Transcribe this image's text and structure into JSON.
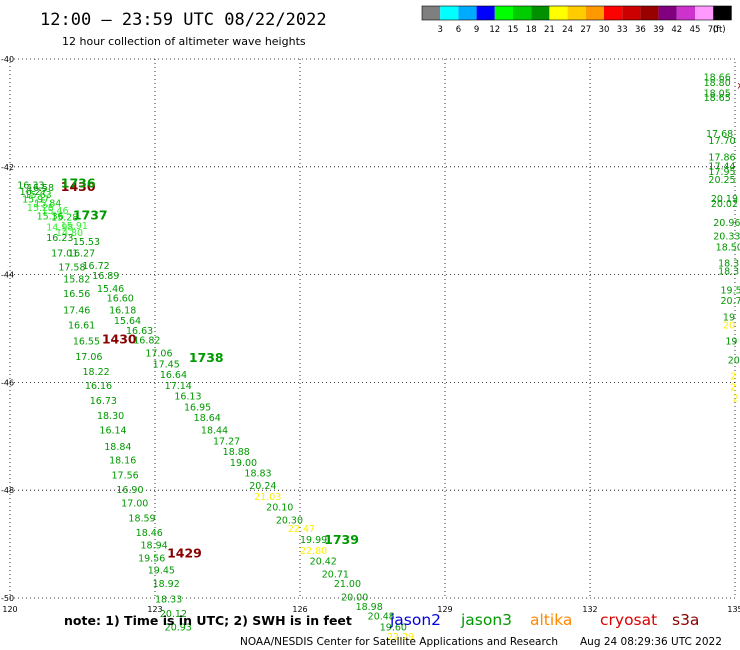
{
  "header": {
    "title": "12:00 – 23:59 UTC 08/22/2022",
    "subtitle": "12 hour collection of altimeter wave heights"
  },
  "colorbar": {
    "colors": [
      "#7f7f7f",
      "#00ffff",
      "#00aaff",
      "#0000ff",
      "#00ff00",
      "#00cc00",
      "#009000",
      "#ffff00",
      "#ffcc00",
      "#ff9900",
      "#ff0000",
      "#cc0000",
      "#990000",
      "#800080",
      "#cc33cc",
      "#ff99ff",
      "#000000"
    ],
    "ticks": [
      "3",
      "6",
      "9",
      "12",
      "15",
      "18",
      "21",
      "24",
      "27",
      "30",
      "33",
      "36",
      "39",
      "42",
      "45",
      "70"
    ],
    "unit": "(ft)"
  },
  "note": "note:  1) Time is in UTC; 2) SWH is in feet",
  "legend": [
    {
      "name": "jason2",
      "color": "#0000dd"
    },
    {
      "name": "jason3",
      "color": "#009900"
    },
    {
      "name": "altika",
      "color": "#ff8800"
    },
    {
      "name": "cryosat",
      "color": "#dd0000"
    },
    {
      "name": "s3a",
      "color": "#880000"
    }
  ],
  "footer": {
    "credit": "NOAA/NESDIS Center for Satellite Applications and Research",
    "timestamp": "Aug 24 08:29:36 UTC 2022"
  },
  "chart_data": {
    "type": "scatter",
    "title": "12:00 – 23:59 UTC 08/22/2022",
    "subtitle": "12 hour collection of altimeter wave heights",
    "unit": "ft",
    "xlim": [
      120,
      135
    ],
    "ylim": [
      -50,
      -40
    ],
    "xticks": [
      120,
      123,
      126,
      129,
      132,
      135
    ],
    "yticks": [
      -40,
      -42,
      -44,
      -46,
      -48,
      -50
    ],
    "xtick_labels": [
      "120",
      "123",
      "126",
      "129",
      "132",
      "135"
    ],
    "ytick_labels": [
      "-40",
      "-42",
      "-44",
      "-46",
      "-48",
      "-50"
    ],
    "grid": true,
    "legend_position": "bottom",
    "series": [
      {
        "name": "jason3",
        "points": [
          {
            "x": 120.15,
            "y": -42.4,
            "v": "16.33",
            "c": "#009900"
          },
          {
            "x": 120.35,
            "y": -42.45,
            "v": "16.58",
            "c": "#009900"
          },
          {
            "x": 120.2,
            "y": -42.52,
            "v": "16.27",
            "c": "#009900"
          },
          {
            "x": 120.3,
            "y": -42.58,
            "v": "15.63",
            "c": "#00cc00"
          },
          {
            "x": 120.25,
            "y": -42.66,
            "v": "15.97",
            "c": "#00cc00"
          },
          {
            "x": 120.5,
            "y": -42.74,
            "v": "15.84",
            "c": "#00cc00"
          },
          {
            "x": 120.35,
            "y": -42.82,
            "v": "15.25",
            "c": "#33ee33"
          },
          {
            "x": 120.65,
            "y": -42.88,
            "v": "15.46",
            "c": "#33ee33"
          },
          {
            "x": 120.55,
            "y": -42.98,
            "v": "15.36",
            "c": "#00cc00"
          },
          {
            "x": 120.85,
            "y": -43.0,
            "v": "15.28",
            "c": "#00cc00"
          },
          {
            "x": 120.75,
            "y": -43.18,
            "v": "14.98",
            "c": "#33ee33"
          },
          {
            "x": 121.05,
            "y": -43.15,
            "v": "15.91",
            "c": "#33ee33"
          },
          {
            "x": 120.95,
            "y": -43.28,
            "v": "14.80",
            "c": "#33ee33"
          },
          {
            "x": 120.75,
            "y": -43.38,
            "v": "16.23",
            "c": "#009900"
          },
          {
            "x": 121.3,
            "y": -43.45,
            "v": "15.53",
            "c": "#009900"
          },
          {
            "x": 120.85,
            "y": -43.66,
            "v": "17.01",
            "c": "#009900"
          },
          {
            "x": 121.2,
            "y": -43.66,
            "v": "16.27",
            "c": "#009900"
          },
          {
            "x": 121.5,
            "y": -43.9,
            "v": "16.72",
            "c": "#009900"
          },
          {
            "x": 121.0,
            "y": -43.92,
            "v": "17.58",
            "c": "#009900"
          },
          {
            "x": 121.7,
            "y": -44.08,
            "v": "16.89",
            "c": "#009900"
          },
          {
            "x": 121.1,
            "y": -44.15,
            "v": "15.82",
            "c": "#009900"
          },
          {
            "x": 121.8,
            "y": -44.32,
            "v": "15.46",
            "c": "#009900"
          },
          {
            "x": 121.1,
            "y": -44.42,
            "v": "16.56",
            "c": "#009900"
          },
          {
            "x": 122.0,
            "y": -44.5,
            "v": "16.60",
            "c": "#009900"
          },
          {
            "x": 121.1,
            "y": -44.72,
            "v": "17.46",
            "c": "#009900"
          },
          {
            "x": 122.05,
            "y": -44.72,
            "v": "16.18",
            "c": "#009900"
          },
          {
            "x": 122.15,
            "y": -44.92,
            "v": "15.64",
            "c": "#009900"
          },
          {
            "x": 121.2,
            "y": -45.0,
            "v": "16.61",
            "c": "#009900"
          },
          {
            "x": 122.4,
            "y": -45.1,
            "v": "16.63",
            "c": "#009900"
          },
          {
            "x": 122.55,
            "y": -45.28,
            "v": "16.82",
            "c": "#009900"
          },
          {
            "x": 121.3,
            "y": -45.3,
            "v": "16.55",
            "c": "#009900"
          },
          {
            "x": 121.35,
            "y": -45.58,
            "v": "17.06",
            "c": "#009900"
          },
          {
            "x": 122.8,
            "y": -45.52,
            "v": "17.06",
            "c": "#009900"
          },
          {
            "x": 122.95,
            "y": -45.72,
            "v": "17.45",
            "c": "#009900"
          },
          {
            "x": 121.5,
            "y": -45.86,
            "v": "18.22",
            "c": "#009900"
          },
          {
            "x": 123.1,
            "y": -45.92,
            "v": "16.64",
            "c": "#009900"
          },
          {
            "x": 121.55,
            "y": -46.12,
            "v": "16.16",
            "c": "#009900"
          },
          {
            "x": 123.2,
            "y": -46.12,
            "v": "17.14",
            "c": "#009900"
          },
          {
            "x": 121.65,
            "y": -46.4,
            "v": "16.73",
            "c": "#009900"
          },
          {
            "x": 123.4,
            "y": -46.32,
            "v": "16.13",
            "c": "#009900"
          },
          {
            "x": 123.6,
            "y": -46.52,
            "v": "16.95",
            "c": "#009900"
          },
          {
            "x": 121.8,
            "y": -46.68,
            "v": "18.30",
            "c": "#009900"
          },
          {
            "x": 123.8,
            "y": -46.72,
            "v": "18.64",
            "c": "#009900"
          },
          {
            "x": 121.85,
            "y": -46.95,
            "v": "16.14",
            "c": "#009900"
          },
          {
            "x": 123.95,
            "y": -46.95,
            "v": "18.44",
            "c": "#009900"
          },
          {
            "x": 124.2,
            "y": -47.15,
            "v": "17.27",
            "c": "#009900"
          },
          {
            "x": 121.95,
            "y": -47.25,
            "v": "18.84",
            "c": "#009900"
          },
          {
            "x": 124.4,
            "y": -47.35,
            "v": "18.88",
            "c": "#009900"
          },
          {
            "x": 122.05,
            "y": -47.5,
            "v": "18.16",
            "c": "#009900"
          },
          {
            "x": 124.55,
            "y": -47.55,
            "v": "19.00",
            "c": "#009900"
          },
          {
            "x": 122.1,
            "y": -47.78,
            "v": "17.56",
            "c": "#009900"
          },
          {
            "x": 124.85,
            "y": -47.75,
            "v": "18.83",
            "c": "#009900"
          },
          {
            "x": 122.2,
            "y": -48.05,
            "v": "16.90",
            "c": "#009900"
          },
          {
            "x": 124.95,
            "y": -47.98,
            "v": "20.24",
            "c": "#009900"
          },
          {
            "x": 125.05,
            "y": -48.18,
            "v": "21.03",
            "c": "#ffee00"
          },
          {
            "x": 122.3,
            "y": -48.3,
            "v": "17.00",
            "c": "#009900"
          },
          {
            "x": 125.3,
            "y": -48.38,
            "v": "20.10",
            "c": "#009900"
          },
          {
            "x": 122.45,
            "y": -48.58,
            "v": "18.59",
            "c": "#009900"
          },
          {
            "x": 125.5,
            "y": -48.62,
            "v": "20.30",
            "c": "#009900"
          },
          {
            "x": 122.6,
            "y": -48.85,
            "v": "18.46",
            "c": "#009900"
          },
          {
            "x": 125.75,
            "y": -48.78,
            "v": "22.47",
            "c": "#ffee00"
          },
          {
            "x": 122.7,
            "y": -49.08,
            "v": "18.94",
            "c": "#009900"
          },
          {
            "x": 126.0,
            "y": -48.98,
            "v": "19.99",
            "c": "#009900"
          },
          {
            "x": 122.65,
            "y": -49.32,
            "v": "19.56",
            "c": "#009900"
          },
          {
            "x": 126.0,
            "y": -49.18,
            "v": "22.80",
            "c": "#ffee00"
          },
          {
            "x": 126.2,
            "y": -49.38,
            "v": "20.42",
            "c": "#009900"
          },
          {
            "x": 122.85,
            "y": -49.55,
            "v": "19.45",
            "c": "#009900"
          },
          {
            "x": 126.45,
            "y": -49.62,
            "v": "20.71",
            "c": "#009900"
          },
          {
            "x": 122.95,
            "y": -49.8,
            "v": "18.92",
            "c": "#009900"
          },
          {
            "x": 126.7,
            "y": -49.8,
            "v": "21.00",
            "c": "#009900"
          },
          {
            "x": 126.85,
            "y": -50.05,
            "v": "20.00",
            "c": "#009900"
          },
          {
            "x": 123.0,
            "y": -50.08,
            "v": "18.33",
            "c": "#009900"
          },
          {
            "x": 127.15,
            "y": -50.22,
            "v": "18.98",
            "c": "#009900"
          },
          {
            "x": 123.1,
            "y": -50.35,
            "v": "20.12",
            "c": "#009900"
          },
          {
            "x": 127.4,
            "y": -50.4,
            "v": "20.48",
            "c": "#009900"
          },
          {
            "x": 123.2,
            "y": -50.6,
            "v": "20.93",
            "c": "#009900"
          },
          {
            "x": 127.65,
            "y": -50.6,
            "v": "19.60",
            "c": "#009900"
          },
          {
            "x": 127.8,
            "y": -50.78,
            "v": "22.29",
            "c": "#ffee00"
          },
          {
            "x": 134.35,
            "y": -40.4,
            "v": "18.66",
            "c": "#009900"
          },
          {
            "x": 134.35,
            "y": -40.5,
            "v": "18.80",
            "c": "#009900"
          },
          {
            "x": 134.35,
            "y": -40.7,
            "v": "18.05",
            "c": "#009900"
          },
          {
            "x": 134.35,
            "y": -40.78,
            "v": "18.65",
            "c": "#009900"
          },
          {
            "x": 134.4,
            "y": -41.45,
            "v": "17.68",
            "c": "#009900"
          },
          {
            "x": 134.45,
            "y": -41.58,
            "v": "17.70",
            "c": "#009900"
          },
          {
            "x": 134.45,
            "y": -41.88,
            "v": "17.86",
            "c": "#009900"
          },
          {
            "x": 134.45,
            "y": -42.05,
            "v": "17.44",
            "c": "#009900"
          },
          {
            "x": 134.45,
            "y": -42.15,
            "v": "17.95",
            "c": "#009900"
          },
          {
            "x": 134.45,
            "y": -42.3,
            "v": "20.25",
            "c": "#009900"
          },
          {
            "x": 134.5,
            "y": -42.65,
            "v": "20.19",
            "c": "#009900"
          },
          {
            "x": 134.5,
            "y": -42.75,
            "v": "20.02",
            "c": "#009900"
          },
          {
            "x": 134.55,
            "y": -43.1,
            "v": "20.96",
            "c": "#009900"
          },
          {
            "x": 134.55,
            "y": -43.35,
            "v": "20.33",
            "c": "#009900"
          },
          {
            "x": 134.6,
            "y": -43.55,
            "v": "18.50",
            "c": "#009900"
          },
          {
            "x": 134.65,
            "y": -43.85,
            "v": "18.3",
            "c": "#009900"
          },
          {
            "x": 134.65,
            "y": -44.0,
            "v": "18.3",
            "c": "#009900"
          },
          {
            "x": 134.7,
            "y": -44.35,
            "v": "19.5",
            "c": "#009900"
          },
          {
            "x": 134.7,
            "y": -44.55,
            "v": "20.7",
            "c": "#009900"
          },
          {
            "x": 134.75,
            "y": -44.85,
            "v": "19",
            "c": "#009900"
          },
          {
            "x": 134.75,
            "y": -45.0,
            "v": "20",
            "c": "#ffee00"
          },
          {
            "x": 134.8,
            "y": -45.3,
            "v": "19",
            "c": "#009900"
          },
          {
            "x": 134.85,
            "y": -45.65,
            "v": "20",
            "c": "#009900"
          },
          {
            "x": 134.9,
            "y": -45.95,
            "v": "2",
            "c": "#ffee00"
          },
          {
            "x": 134.9,
            "y": -46.15,
            "v": "2",
            "c": "#ffee00"
          },
          {
            "x": 134.95,
            "y": -46.35,
            "v": "2",
            "c": "#ffee00"
          }
        ]
      },
      {
        "name": "s3a",
        "points": [
          {
            "x": 121.05,
            "y": -42.45,
            "v": "1430",
            "c": "#880000",
            "time": true
          },
          {
            "x": 121.9,
            "y": -45.28,
            "v": "1430",
            "c": "#880000",
            "time": true
          },
          {
            "x": 123.25,
            "y": -49.25,
            "v": "1429",
            "c": "#880000",
            "time": true
          },
          {
            "x": 135.05,
            "y": -40.55,
            "v": "x",
            "c": "#880000"
          }
        ]
      },
      {
        "name": "jason3-times",
        "points": [
          {
            "x": 121.05,
            "y": -42.38,
            "v": "1736",
            "c": "#009900",
            "time": true
          },
          {
            "x": 121.3,
            "y": -42.98,
            "v": "1737",
            "c": "#009900",
            "time": true
          },
          {
            "x": 123.7,
            "y": -45.62,
            "v": "1738",
            "c": "#009900",
            "time": true
          },
          {
            "x": 126.5,
            "y": -49.0,
            "v": "1739",
            "c": "#009900",
            "time": true
          }
        ]
      }
    ]
  }
}
